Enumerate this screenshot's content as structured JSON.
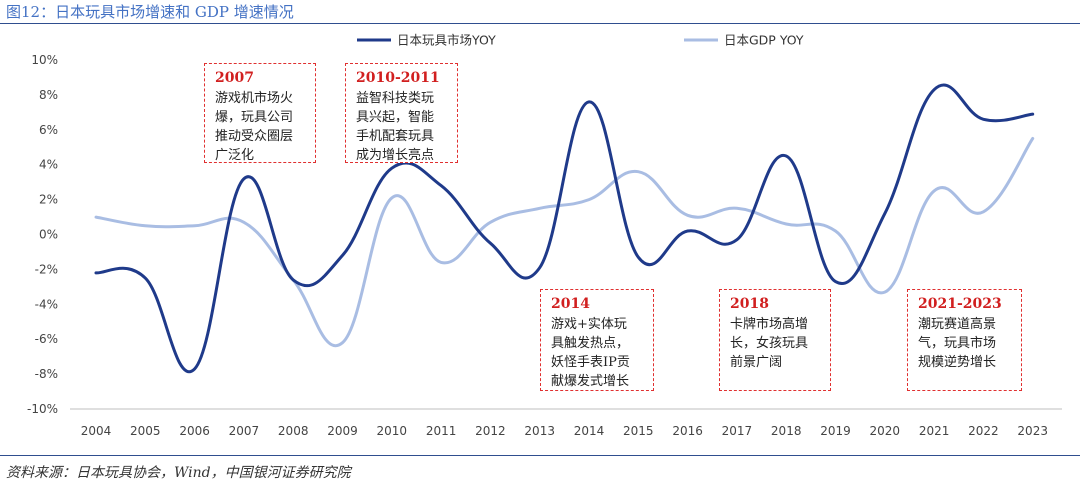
{
  "figure": {
    "title": "图12：日本玩具市场增速和 GDP 增速情况",
    "source": "资料来源：日本玩具协会，Wind，中国银河证券研究院"
  },
  "chart_data": {
    "type": "line",
    "title": "日本玩具市场增速和 GDP 增速情况",
    "xlabel": "",
    "ylabel": "",
    "categories": [
      "2004",
      "2005",
      "2006",
      "2007",
      "2008",
      "2009",
      "2010",
      "2011",
      "2012",
      "2013",
      "2014",
      "2015",
      "2016",
      "2017",
      "2018",
      "2019",
      "2020",
      "2021",
      "2022",
      "2023"
    ],
    "ylim": [
      -10,
      10
    ],
    "yticks": [
      -10,
      -8,
      -6,
      -4,
      -2,
      0,
      2,
      4,
      6,
      8,
      10
    ],
    "ytick_labels": [
      "-10%",
      "-8%",
      "-6%",
      "-4%",
      "-2%",
      "0%",
      "2%",
      "4%",
      "6%",
      "8%",
      "10%"
    ],
    "grid": false,
    "legend_position": "top-center",
    "series": [
      {
        "name": "日本玩具市场YOY",
        "color": "#1f3a8a",
        "values": [
          -2.2,
          -2.5,
          -7.7,
          3.2,
          -2.6,
          -1.2,
          3.8,
          2.8,
          -0.5,
          -1.9,
          7.6,
          -1.3,
          0.2,
          -0.3,
          4.5,
          -2.7,
          1.2,
          8.3,
          6.6,
          6.9
        ]
      },
      {
        "name": "日本GDP YOY",
        "color": "#a9bde3",
        "values": [
          1.0,
          0.5,
          0.5,
          0.7,
          -2.6,
          -6.2,
          2.1,
          -1.6,
          0.7,
          1.5,
          2.0,
          3.6,
          1.1,
          1.5,
          0.6,
          0.2,
          -3.3,
          2.5,
          1.3,
          5.5
        ]
      }
    ],
    "annotations": [
      {
        "year": "2007",
        "text": "游戏机市场火\n爆，玩具公司\n推动受众圈层\n广泛化"
      },
      {
        "year": "2010-2011",
        "text": "益智科技类玩\n具兴起，智能\n手机配套玩具\n成为增长亮点"
      },
      {
        "year": "2014",
        "text": "游戏+实体玩\n具触发热点，\n妖怪手表IP贡\n献爆发式增长"
      },
      {
        "year": "2018",
        "text": "卡牌市场高增\n长，女孩玩具\n前景广阔"
      },
      {
        "year": "2021-2023",
        "text": "潮玩赛道高景\n气，玩具市场\n规模逆势增长"
      }
    ]
  }
}
